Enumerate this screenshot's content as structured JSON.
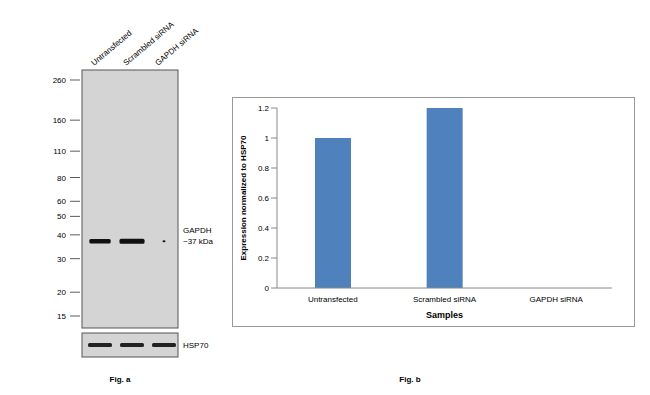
{
  "blot": {
    "caption": "Fig. a",
    "lanes": [
      "Untransfected",
      "Scrambled siRNA",
      "GAPDH siRNA"
    ],
    "markers": [
      260,
      160,
      110,
      80,
      60,
      50,
      40,
      30,
      20,
      15
    ],
    "band": {
      "label": "GAPDH",
      "size_label": "~37 kDa",
      "kda": 37
    },
    "loading_control": "HSP70"
  },
  "chart_data": {
    "type": "bar",
    "caption": "Fig. b",
    "categories": [
      "Untransfected",
      "Scrambled siRNA",
      "GAPDH siRNA"
    ],
    "values": [
      1,
      1.2,
      0
    ],
    "color": "#4f81bd",
    "ylim": [
      0,
      1.2
    ],
    "yticks": [
      0,
      0.2,
      0.4,
      0.6,
      0.8,
      1,
      1.2
    ],
    "y_label": "Expression normalized to HSP70",
    "x_label": "Samples",
    "grid": false
  }
}
